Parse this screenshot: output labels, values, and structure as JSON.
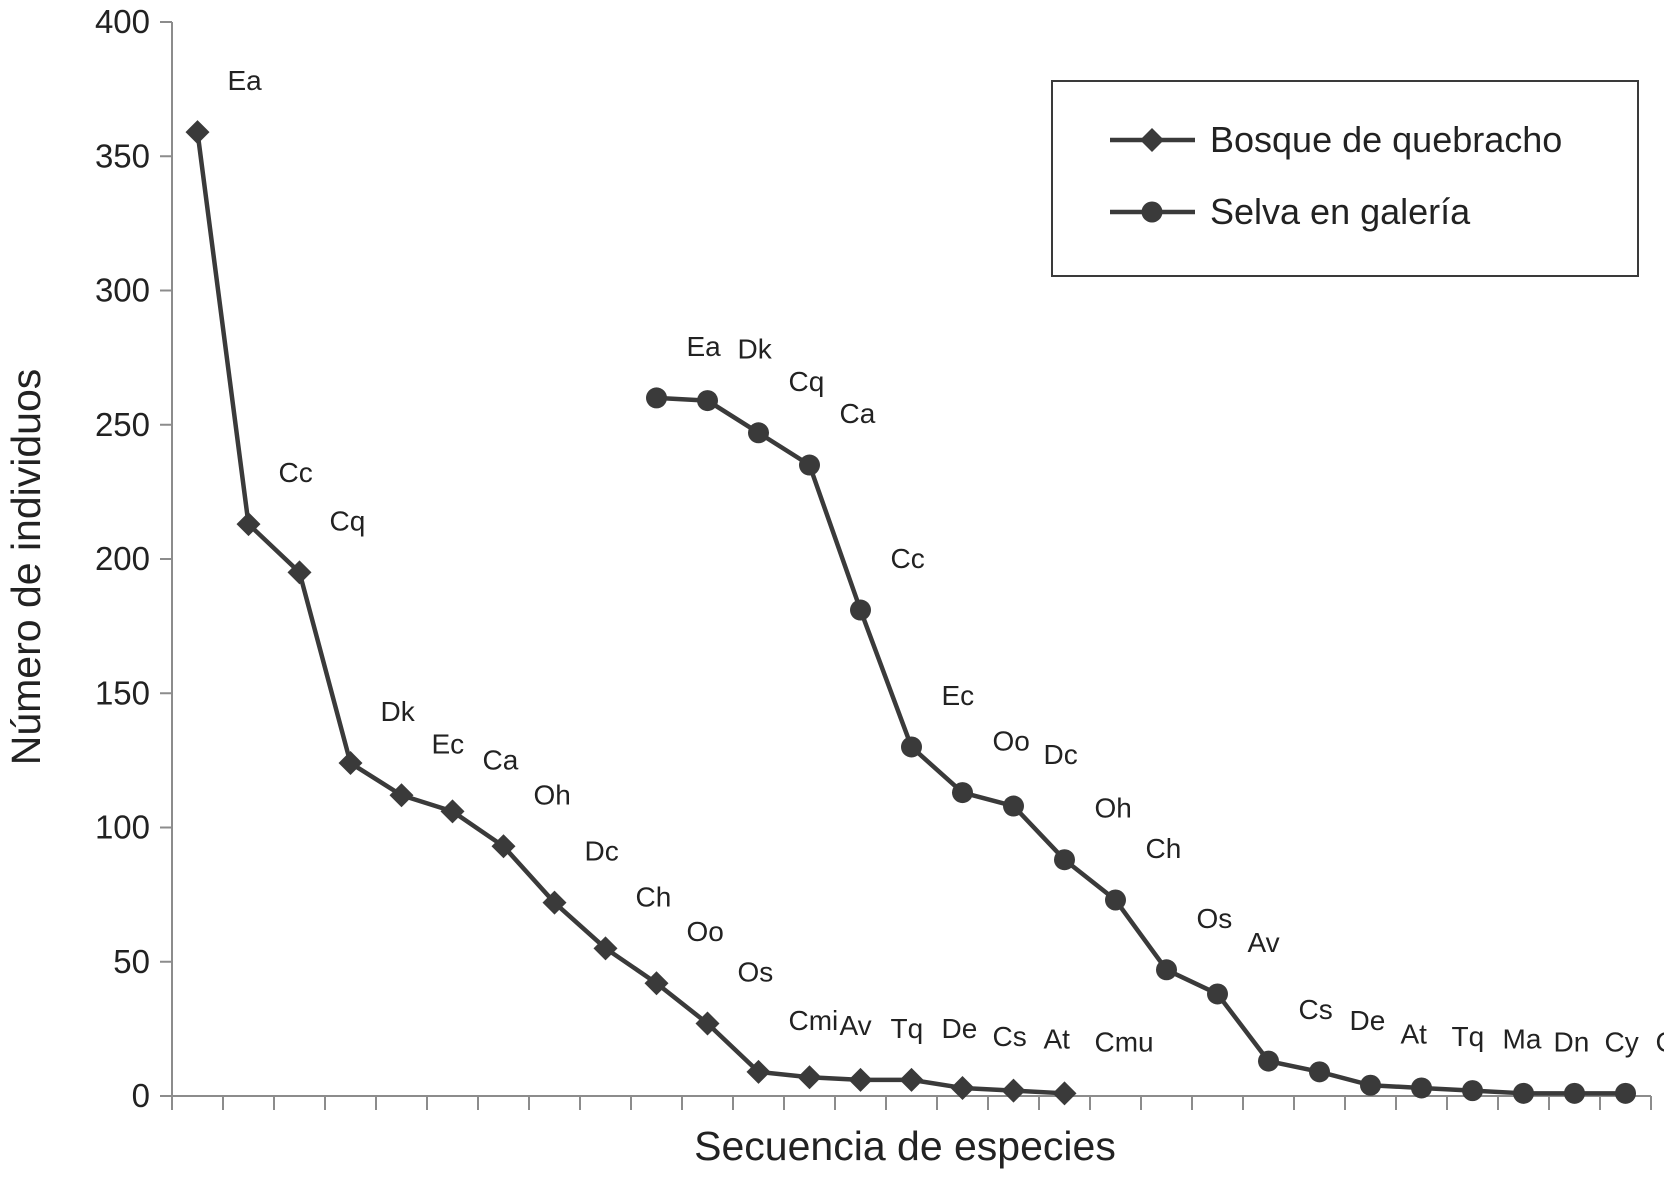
{
  "chart_data": {
    "type": "line",
    "xlabel": "Secuencia de especies",
    "ylabel": "Número de individuos",
    "ylim": [
      0,
      400
    ],
    "yticks": [
      0,
      50,
      100,
      150,
      200,
      250,
      300,
      350,
      400
    ],
    "x_positions": 27,
    "legend_position": "top-right",
    "series": [
      {
        "name": "Bosque de quebracho",
        "marker": "diamond",
        "points": [
          {
            "x": 1,
            "y": 359,
            "label": "Ea"
          },
          {
            "x": 2,
            "y": 213,
            "label": "Cc"
          },
          {
            "x": 3,
            "y": 195,
            "label": "Cq"
          },
          {
            "x": 4,
            "y": 124,
            "label": "Dk"
          },
          {
            "x": 5,
            "y": 112,
            "label": "Ec"
          },
          {
            "x": 6,
            "y": 106,
            "label": "Ca"
          },
          {
            "x": 7,
            "y": 93,
            "label": "Oh"
          },
          {
            "x": 8,
            "y": 72,
            "label": "Dc"
          },
          {
            "x": 9,
            "y": 55,
            "label": "Ch"
          },
          {
            "x": 10,
            "y": 42,
            "label": "Oo"
          },
          {
            "x": 11,
            "y": 27,
            "label": "Os"
          },
          {
            "x": 12,
            "y": 9,
            "label": "Cmi"
          },
          {
            "x": 13,
            "y": 7,
            "label": "Av"
          },
          {
            "x": 14,
            "y": 6,
            "label": "Tq"
          },
          {
            "x": 15,
            "y": 6,
            "label": "De"
          },
          {
            "x": 16,
            "y": 3,
            "label": "Cs"
          },
          {
            "x": 17,
            "y": 2,
            "label": "At"
          },
          {
            "x": 18,
            "y": 1,
            "label": "Cmu"
          }
        ]
      },
      {
        "name": "Selva en galería",
        "marker": "circle",
        "points": [
          {
            "x": 10,
            "y": 260,
            "label": "Ea"
          },
          {
            "x": 11,
            "y": 259,
            "label": "Dk"
          },
          {
            "x": 12,
            "y": 247,
            "label": "Cq"
          },
          {
            "x": 13,
            "y": 235,
            "label": "Ca"
          },
          {
            "x": 14,
            "y": 181,
            "label": "Cc"
          },
          {
            "x": 15,
            "y": 130,
            "label": "Ec"
          },
          {
            "x": 16,
            "y": 113,
            "label": "Oo"
          },
          {
            "x": 17,
            "y": 108,
            "label": "Dc"
          },
          {
            "x": 18,
            "y": 88,
            "label": "Oh"
          },
          {
            "x": 19,
            "y": 73,
            "label": "Ch"
          },
          {
            "x": 20,
            "y": 47,
            "label": "Os"
          },
          {
            "x": 21,
            "y": 38,
            "label": "Av"
          },
          {
            "x": 22,
            "y": 13,
            "label": "Cs"
          },
          {
            "x": 23,
            "y": 9,
            "label": "De"
          },
          {
            "x": 24,
            "y": 4,
            "label": "At"
          },
          {
            "x": 25,
            "y": 3,
            "label": "Tq"
          },
          {
            "x": 26,
            "y": 2,
            "label": "Ma"
          },
          {
            "x": 27,
            "y": 1,
            "label": "Dn"
          },
          {
            "x": 28,
            "y": 1,
            "label": "Cy"
          },
          {
            "x": 29,
            "y": 1,
            "label": "Cmi"
          }
        ]
      }
    ]
  }
}
